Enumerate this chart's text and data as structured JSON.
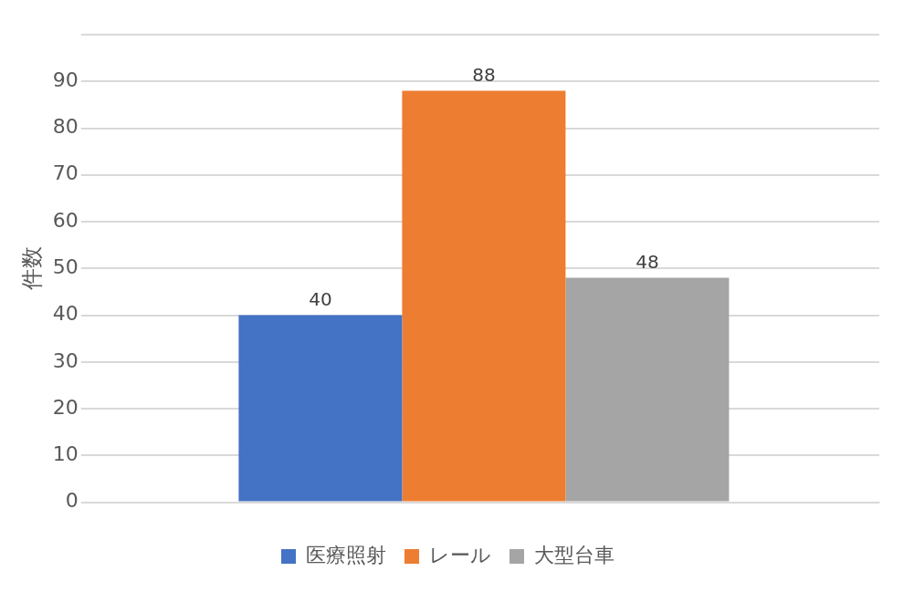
{
  "chart_data": {
    "type": "bar",
    "ylabel": "件数",
    "categories": [
      null
    ],
    "series": [
      {
        "name": "医療照射",
        "color": "#4472c4",
        "values": [
          40
        ]
      },
      {
        "name": "レール",
        "color": "#ed7d31",
        "values": [
          88
        ]
      },
      {
        "name": "大型台車",
        "color": "#a5a5a5",
        "values": [
          48
        ]
      }
    ],
    "ylim": [
      0,
      100
    ],
    "yticks": [
      0,
      10,
      20,
      30,
      40,
      50,
      60,
      70,
      80,
      90,
      {
        "value": 100,
        "label": null
      }
    ],
    "grid": "y",
    "legend": "bottom",
    "data_labels": true
  }
}
